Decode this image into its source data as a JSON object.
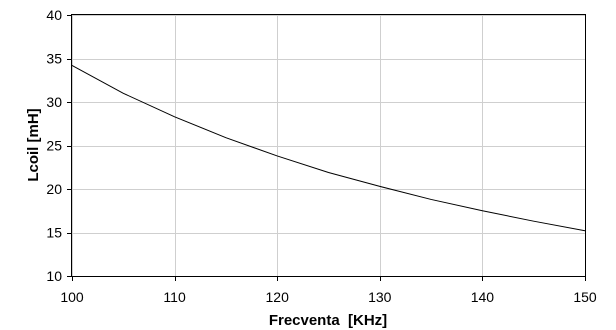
{
  "chart_data": {
    "type": "line",
    "title": "",
    "xlabel": "Frecventa  [KHz]",
    "ylabel": "Lcoil [mH]",
    "xlim": [
      100,
      150
    ],
    "ylim": [
      10,
      40
    ],
    "x_ticks": [
      100,
      110,
      120,
      130,
      140,
      150
    ],
    "y_ticks": [
      10,
      15,
      20,
      25,
      30,
      35,
      40
    ],
    "grid": true,
    "legend": "none",
    "series": [
      {
        "color": "#000000",
        "x": [
          100,
          105,
          110,
          115,
          120,
          125,
          130,
          135,
          140,
          145,
          150
        ],
        "y": [
          34.2,
          31.0,
          28.3,
          25.9,
          23.8,
          21.9,
          20.3,
          18.8,
          17.5,
          16.3,
          15.2
        ]
      }
    ]
  }
}
